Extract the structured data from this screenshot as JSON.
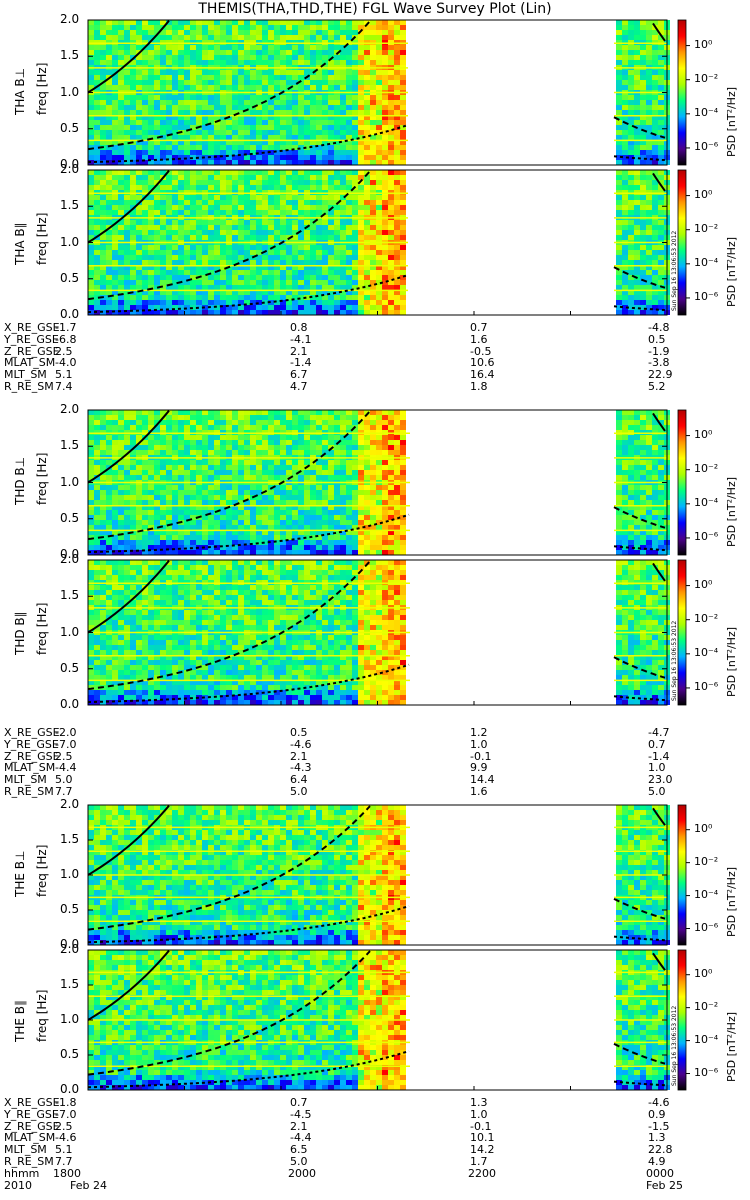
{
  "title": "THEMIS(THA,THD,THE) FGL Wave Survey Plot (Lin)",
  "stamp": "Sun Sep 16 13:06:53 2012",
  "colorbar": {
    "label": "PSD [nT²/Hz]",
    "ticks": [
      "10⁰",
      "10⁻²",
      "10⁻⁴",
      "10⁻⁶"
    ],
    "tick_exponents": [
      0,
      -2,
      -4,
      -6
    ],
    "range_exponent": [
      -7,
      1.5
    ],
    "colormap": [
      "#000000",
      "#4b008c",
      "#0000ff",
      "#00b4ff",
      "#00ff80",
      "#aaff00",
      "#ffff00",
      "#ff9600",
      "#ff0000",
      "#b40000"
    ]
  },
  "chart_data": [
    {
      "type": "heatmap",
      "panel": "THA B⊥",
      "ylabel": "THA B⊥",
      "ylabel2": "freq [Hz]",
      "ylim": [
        0,
        2
      ],
      "yticks": [
        "0.0",
        "0.5",
        "1.0",
        "1.5",
        "2.0"
      ],
      "xlim_hhmm": [
        "1800",
        "0000"
      ],
      "data_gaps": [
        [
          "2118",
          "2306"
        ]
      ]
    },
    {
      "type": "heatmap",
      "panel": "THA B∥",
      "ylabel": "THA B∥",
      "ylabel2": "freq [Hz]",
      "ylim": [
        0,
        2
      ],
      "yticks": [
        "0.0",
        "0.5",
        "1.0",
        "1.5",
        "2.0"
      ],
      "xlim_hhmm": [
        "1800",
        "0000"
      ],
      "data_gaps": [
        [
          "2118",
          "2306"
        ]
      ]
    },
    {
      "type": "heatmap",
      "panel": "THD B⊥",
      "ylabel": "THD B⊥",
      "ylabel2": "freq [Hz]",
      "ylim": [
        0,
        2
      ],
      "yticks": [
        "0.0",
        "0.5",
        "1.0",
        "1.5",
        "2.0"
      ],
      "xlim_hhmm": [
        "1800",
        "0000"
      ],
      "data_gaps": [
        [
          "2108",
          "2306"
        ]
      ]
    },
    {
      "type": "heatmap",
      "panel": "THD B∥",
      "ylabel": "THD B∥",
      "ylabel2": "freq [Hz]",
      "ylim": [
        0,
        2
      ],
      "yticks": [
        "0.0",
        "0.5",
        "1.0",
        "1.5",
        "2.0"
      ],
      "xlim_hhmm": [
        "1800",
        "0000"
      ],
      "data_gaps": [
        [
          "2108",
          "2306"
        ]
      ]
    },
    {
      "type": "heatmap",
      "panel": "THE B⊥",
      "ylabel": "THE B⊥",
      "ylabel2": "freq [Hz]",
      "ylim": [
        0,
        2
      ],
      "yticks": [
        "0.0",
        "0.5",
        "1.0",
        "1.5",
        "2.0"
      ],
      "xlim_hhmm": [
        "1800",
        "0000"
      ],
      "data_gaps": [
        [
          "2108",
          "2306"
        ]
      ]
    },
    {
      "type": "heatmap",
      "panel": "THE B∥",
      "ylabel": "THE B∥",
      "ylabel2": "freq [Hz]",
      "ylim": [
        0,
        2
      ],
      "yticks": [
        "0.0",
        "0.5",
        "1.0",
        "1.5",
        "2.0"
      ],
      "xlim_hhmm": [
        "1800",
        "0000"
      ],
      "data_gaps": [
        [
          "2108",
          "2306"
        ]
      ]
    }
  ],
  "probes": [
    {
      "ephem": [
        {
          "label": "X_RE_GSE",
          "values": [
            "-1.7",
            "0.8",
            "0.7",
            "-4.8"
          ]
        },
        {
          "label": "Y_RE_GSE",
          "values": [
            "-6.8",
            "-4.1",
            "1.6",
            "0.5"
          ]
        },
        {
          "label": "Z_RE_GSE",
          "values": [
            "2.5",
            "2.1",
            "-0.5",
            "-1.9"
          ]
        },
        {
          "label": "MLAT_SM",
          "values": [
            "-4.0",
            "-1.4",
            "10.6",
            "-3.8"
          ]
        },
        {
          "label": "MLT_SM",
          "values": [
            "5.1",
            "6.7",
            "16.4",
            "22.9"
          ]
        },
        {
          "label": "R_RE_SM",
          "values": [
            "7.4",
            "4.7",
            "1.8",
            "5.2"
          ]
        }
      ]
    },
    {
      "ephem": [
        {
          "label": "X_RE_GSE",
          "values": [
            "-2.0",
            "0.5",
            "1.2",
            "-4.7"
          ]
        },
        {
          "label": "Y_RE_GSE",
          "values": [
            "-7.0",
            "-4.6",
            "1.0",
            "0.7"
          ]
        },
        {
          "label": "Z_RE_GSE",
          "values": [
            "2.5",
            "2.1",
            "-0.1",
            "-1.4"
          ]
        },
        {
          "label": "MLAT_SM",
          "values": [
            "-4.4",
            "-4.3",
            "9.9",
            "1.0"
          ]
        },
        {
          "label": "MLT_SM",
          "values": [
            "5.0",
            "6.4",
            "14.4",
            "23.0"
          ]
        },
        {
          "label": "R_RE_SM",
          "values": [
            "7.7",
            "5.0",
            "1.6",
            "5.0"
          ]
        }
      ]
    },
    {
      "ephem": [
        {
          "label": "X_RE_GSE",
          "values": [
            "-1.8",
            "0.7",
            "1.3",
            "-4.6"
          ]
        },
        {
          "label": "Y_RE_GSE",
          "values": [
            "-7.0",
            "-4.5",
            "1.0",
            "0.9"
          ]
        },
        {
          "label": "Z_RE_GSE",
          "values": [
            "2.5",
            "2.1",
            "-0.1",
            "-1.5"
          ]
        },
        {
          "label": "MLAT_SM",
          "values": [
            "-4.6",
            "-4.4",
            "10.1",
            "1.3"
          ]
        },
        {
          "label": "MLT_SM",
          "values": [
            "5.1",
            "6.5",
            "14.2",
            "22.8"
          ]
        },
        {
          "label": "R_RE_SM",
          "values": [
            "7.7",
            "5.0",
            "1.7",
            "4.9"
          ]
        }
      ]
    }
  ],
  "time_axis": {
    "hhmm_label": "hhmm",
    "hhmm": [
      "1800",
      "2000",
      "2200",
      "0000"
    ],
    "date_row": [
      "2010",
      "Feb 24",
      "Feb 25"
    ]
  }
}
